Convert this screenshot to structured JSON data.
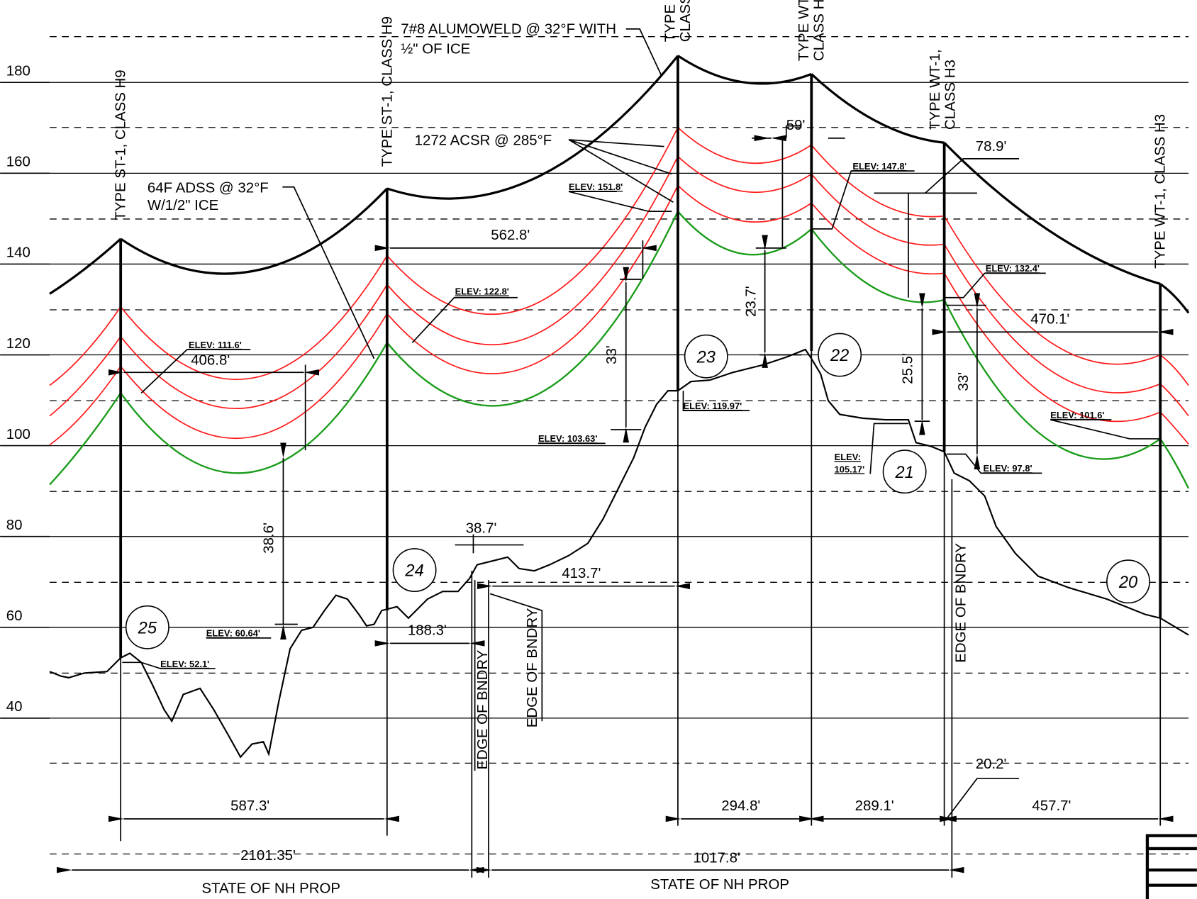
{
  "elevation_labels": [
    "180",
    "160",
    "140",
    "120",
    "100",
    "80",
    "60",
    "40"
  ],
  "structures": [
    {
      "number": "25",
      "label": [
        "TYPE ST-1, CLASS H9"
      ]
    },
    {
      "number": "24",
      "label": [
        "TYPE ST-1, CLASS H9"
      ]
    },
    {
      "number": "23",
      "label": [
        "TYPE",
        "CLASS"
      ]
    },
    {
      "number": "22",
      "label": [
        "TYPE WT-",
        "CLASS H"
      ]
    },
    {
      "number": "21",
      "label": [
        "TYPE WT-1,",
        "CLASS H3"
      ]
    },
    {
      "number": "20",
      "label": [
        "TYPE WT-1, CLASS H3"
      ]
    }
  ],
  "notes": {
    "shield_wire": [
      "7#8 ALUMOWELD @ 32°F WITH",
      "½\" OF ICE"
    ],
    "conductor": "1272 ACSR @ 285°F",
    "fiber": [
      "64F ADSS @ 32°F",
      "W/1/2\" ICE"
    ]
  },
  "elevations": [
    "ELEV: 111.6'",
    "ELEV: 122.8'",
    "ELEV: 151.8'",
    "ELEV: 147.8'",
    "ELEV: 132.4'",
    "ELEV: 101.6'",
    "ELEV: 60.64'",
    "ELEV: 52.1'",
    "ELEV: 103.63'",
    "ELEV: 119.97'",
    [
      "ELEV:",
      "105.17'"
    ],
    "ELEV: 97.8'"
  ],
  "dimensions": {
    "spans": [
      "406.8'",
      "562.8'",
      "59'",
      "78.9'",
      "470.1'"
    ],
    "clearances": [
      "38.6'",
      "33'",
      "23.7'",
      "25.5'",
      "33'"
    ],
    "other": [
      "38.7'",
      "413.7'",
      "188.3'",
      "587.3'",
      "294.8'",
      "289.1'",
      "457.7'",
      "20.2'",
      "2101.35'",
      "1017.8'"
    ]
  },
  "boundary_labels": [
    "EDGE OF BNDRY",
    "EDGE OF BNDRY",
    "EDGE OF BNDRY"
  ],
  "property_labels": [
    "STATE OF NH PROP",
    "STATE OF NH PROP"
  ]
}
